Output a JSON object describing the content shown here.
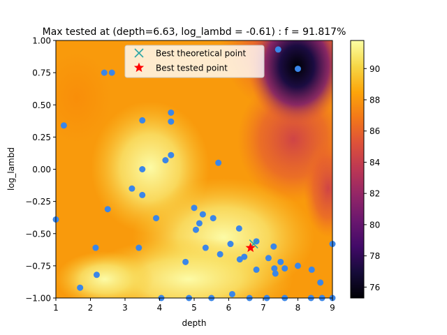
{
  "chart_data": {
    "type": "scatter",
    "title": "Max tested at (depth=6.63, log_lambd = -0.61) : f = 91.817%",
    "xlabel": "depth",
    "ylabel": "log_lambd",
    "xlim": [
      1,
      9
    ],
    "ylim": [
      -1.0,
      1.0
    ],
    "xticks": [
      1,
      2,
      3,
      4,
      5,
      6,
      7,
      8,
      9
    ],
    "yticks": [
      -1.0,
      -0.75,
      -0.5,
      -0.25,
      0.0,
      0.25,
      0.5,
      0.75,
      1.0
    ],
    "yticklabels": [
      "−1.00",
      "−0.75",
      "−0.50",
      "−0.25",
      "0.00",
      "0.25",
      "0.50",
      "0.75",
      "1.00"
    ],
    "colorbar": {
      "colormap": "inferno",
      "range": [
        75.3,
        91.8
      ],
      "ticks": [
        76,
        78,
        80,
        82,
        84,
        86,
        88,
        90
      ]
    },
    "legend": {
      "placement": "top-center",
      "entries": [
        {
          "label": "Best theoretical point",
          "marker": "x",
          "color": "#2ca5a5"
        },
        {
          "label": "Best tested point",
          "marker": "star",
          "color": "#ff0000"
        }
      ]
    },
    "sample_color": "#3a86e8",
    "samples": [
      [
        1.0,
        -0.39
      ],
      [
        1.23,
        0.34
      ],
      [
        1.7,
        -0.92
      ],
      [
        2.15,
        -0.61
      ],
      [
        2.18,
        -0.82
      ],
      [
        2.4,
        0.75
      ],
      [
        2.5,
        -0.31
      ],
      [
        2.62,
        0.75
      ],
      [
        3.2,
        -0.15
      ],
      [
        3.4,
        -0.61
      ],
      [
        3.5,
        0.0
      ],
      [
        3.5,
        -0.2
      ],
      [
        3.5,
        0.38
      ],
      [
        3.9,
        -0.38
      ],
      [
        4.05,
        -1.0
      ],
      [
        4.17,
        0.07
      ],
      [
        4.33,
        0.11
      ],
      [
        4.33,
        0.37
      ],
      [
        4.33,
        0.44
      ],
      [
        4.75,
        -0.72
      ],
      [
        4.85,
        -1.0
      ],
      [
        5.0,
        -0.3
      ],
      [
        5.05,
        -0.47
      ],
      [
        5.15,
        -0.42
      ],
      [
        5.25,
        -0.35
      ],
      [
        5.33,
        -0.61
      ],
      [
        5.5,
        -1.0
      ],
      [
        5.55,
        -0.38
      ],
      [
        5.7,
        0.05
      ],
      [
        5.75,
        -0.66
      ],
      [
        6.05,
        -0.58
      ],
      [
        6.1,
        -0.97
      ],
      [
        6.3,
        -0.46
      ],
      [
        6.32,
        -0.7
      ],
      [
        6.45,
        -0.68
      ],
      [
        6.6,
        -1.0
      ],
      [
        6.8,
        -0.56
      ],
      [
        6.8,
        -0.78
      ],
      [
        7.15,
        -0.69
      ],
      [
        7.1,
        -1.0
      ],
      [
        7.3,
        -0.6
      ],
      [
        7.32,
        -0.77
      ],
      [
        7.35,
        -0.81
      ],
      [
        7.43,
        0.93
      ],
      [
        7.5,
        -0.72
      ],
      [
        7.62,
        -0.77
      ],
      [
        7.62,
        -1.0
      ],
      [
        8.0,
        0.78
      ],
      [
        8.0,
        -0.75
      ],
      [
        8.4,
        -0.78
      ],
      [
        8.38,
        -1.0
      ],
      [
        8.65,
        -0.88
      ],
      [
        8.7,
        -1.0
      ],
      [
        9.0,
        -0.58
      ],
      [
        9.0,
        -1.0
      ]
    ],
    "best_theoretical": [
      6.72,
      -0.58
    ],
    "best_tested": [
      6.63,
      -0.61
    ]
  }
}
